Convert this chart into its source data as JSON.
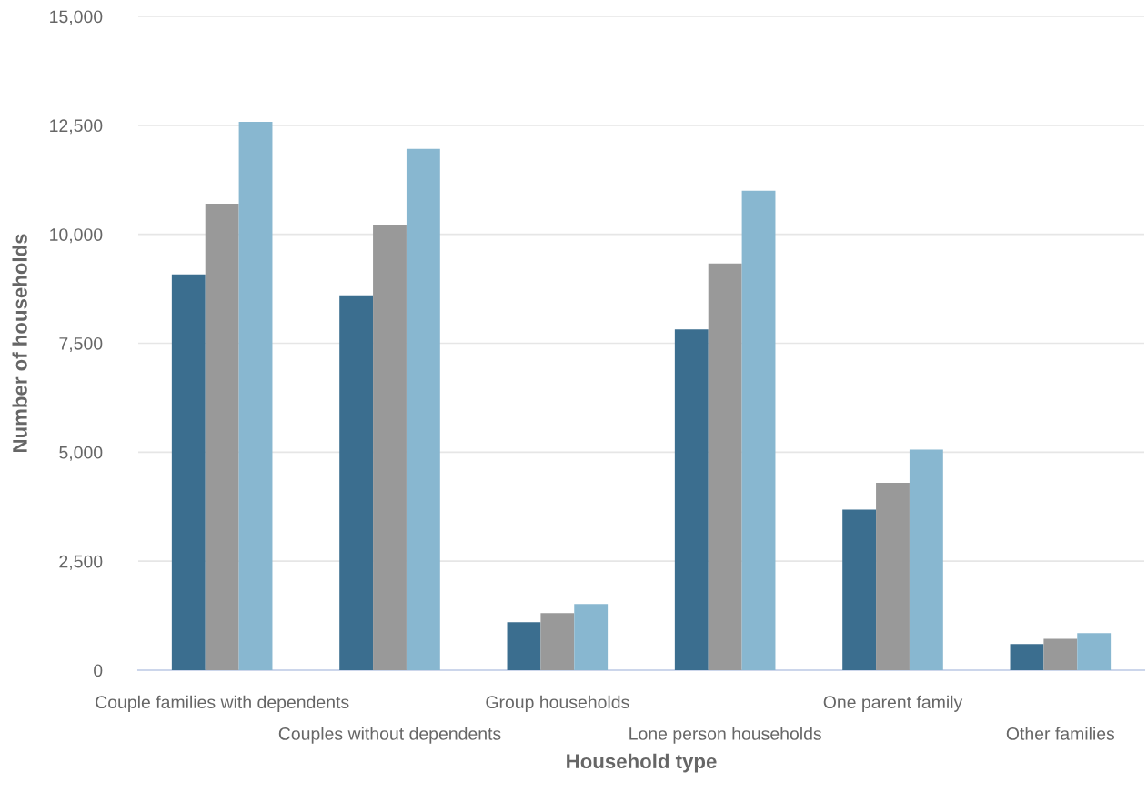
{
  "chart_data": {
    "type": "bar",
    "xlabel": "Household type",
    "ylabel": "Number of households",
    "categories": [
      "Couple families with dependents",
      "Couples without dependents",
      "Group households",
      "Lone person households",
      "One parent family",
      "Other families"
    ],
    "series": [
      {
        "color": "#3b6e8f",
        "values": [
          9080,
          8600,
          1100,
          7820,
          3680,
          600
        ]
      },
      {
        "color": "#999999",
        "values": [
          10700,
          10220,
          1310,
          9330,
          4300,
          720
        ]
      },
      {
        "color": "#88b7d0",
        "values": [
          12580,
          11960,
          1520,
          11000,
          5060,
          850
        ]
      }
    ],
    "ylim": [
      0,
      15000
    ],
    "yticks": [
      {
        "value": 0,
        "label": "0"
      },
      {
        "value": 2500,
        "label": "2,500"
      },
      {
        "value": 5000,
        "label": "5,000"
      },
      {
        "value": 7500,
        "label": "7,500"
      },
      {
        "value": 10000,
        "label": "10,000"
      },
      {
        "value": 12500,
        "label": "12,500"
      },
      {
        "value": 15000,
        "label": "15,000"
      }
    ],
    "grid": "y",
    "legend": false
  }
}
